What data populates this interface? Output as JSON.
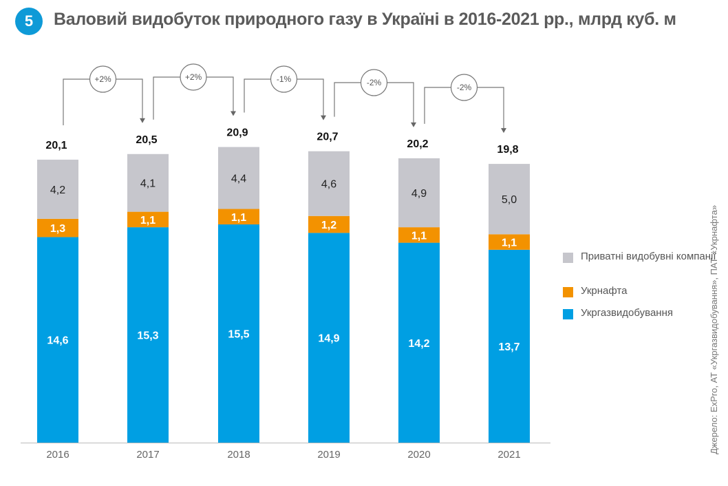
{
  "header": {
    "badge": "5",
    "title": "Валовий видобуток природного газу в Україні в 2016-2021 рр., млрд куб. м"
  },
  "source": "Джерело: ExPro, АТ «Укргазвидобування», ПАТ «Укрнафта»",
  "chart_data": {
    "type": "bar",
    "stacked": true,
    "title": "Валовий видобуток природного газу в Україні в 2016-2021 рр., млрд куб. м",
    "categories": [
      "2016",
      "2017",
      "2018",
      "2019",
      "2020",
      "2021"
    ],
    "series": [
      {
        "name": "Укргазвидобування",
        "color": "#009fe3",
        "values": [
          14.6,
          15.3,
          15.5,
          14.9,
          14.2,
          13.7
        ],
        "labels": [
          "14,6",
          "15,3",
          "15,5",
          "14,9",
          "14,2",
          "13,7"
        ]
      },
      {
        "name": "Укрнафта",
        "color": "#f39200",
        "values": [
          1.3,
          1.1,
          1.1,
          1.2,
          1.1,
          1.1
        ],
        "labels": [
          "1,3",
          "1,1",
          "1,1",
          "1,2",
          "1,1",
          "1,1"
        ]
      },
      {
        "name": "Приватні видобувні компанії",
        "color": "#c6c6cc",
        "values": [
          4.2,
          4.1,
          4.4,
          4.6,
          4.9,
          5.0
        ],
        "labels": [
          "4,2",
          "4,1",
          "4,4",
          "4,6",
          "4,9",
          "5,0"
        ]
      }
    ],
    "totals": [
      "20,1",
      "20,5",
      "20,9",
      "20,7",
      "20,2",
      "19,8"
    ],
    "changes": [
      "+2%",
      "+2%",
      "-1%",
      "-2%",
      "-2%"
    ],
    "legend_position": "right",
    "grid": false
  }
}
